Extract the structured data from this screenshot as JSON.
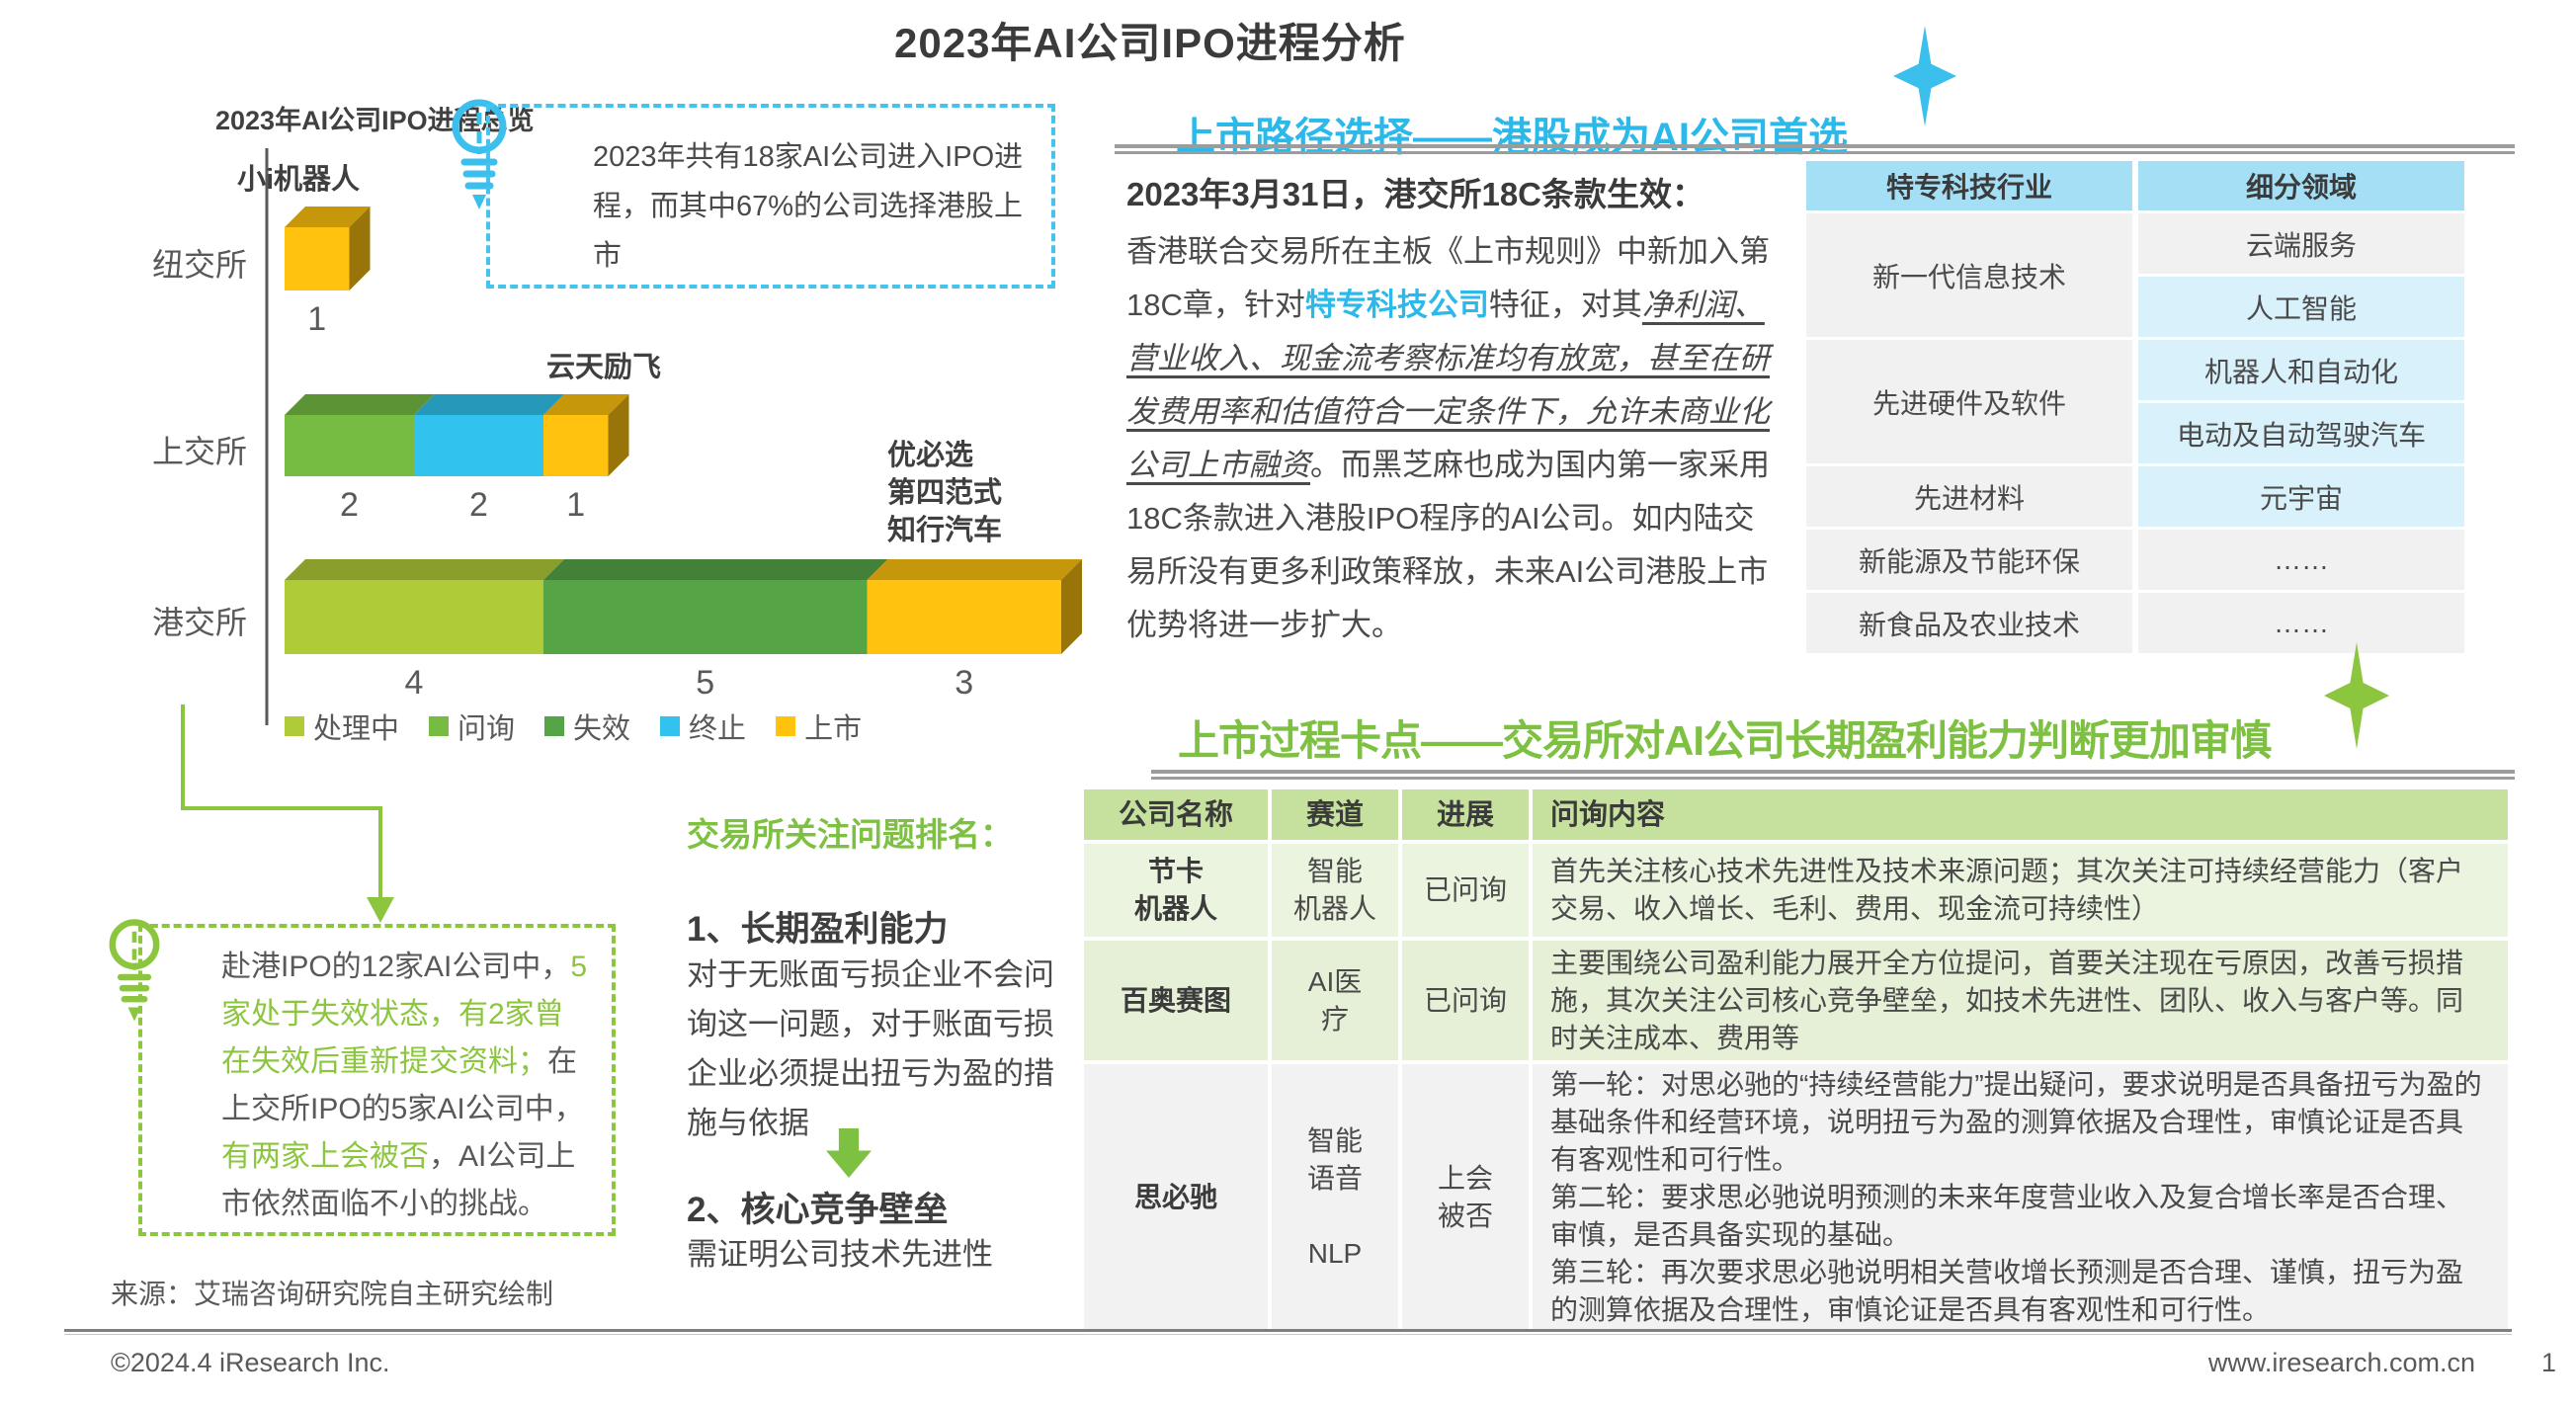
{
  "header": {
    "title": "2023年AI公司IPO进程分析"
  },
  "left_panel": {
    "callout": "2023年共有18家AI公司进入IPO进程，而其中67%的公司选择港股上市",
    "insight_segments": [
      {
        "style": "normal",
        "text": "赴港IPO的12家AI公司中，"
      },
      {
        "style": "green",
        "text": "5家处于失效状态，有2家曾在失效后重新提交资料；"
      },
      {
        "style": "normal",
        "text": "在上交所IPO的5家AI公司中，"
      },
      {
        "style": "green",
        "text": "有两家上会被否"
      },
      {
        "style": "normal",
        "text": "，AI公司上市依然面临不小的挑战。"
      }
    ],
    "source_note": "来源：艾瑞咨询研究院自主研究绘制"
  },
  "chart_data": {
    "type": "bar",
    "orientation": "horizontal",
    "stacked": true,
    "title": "2023年AI公司IPO进程总览",
    "categories": [
      "纽交所",
      "上交所",
      "港交所"
    ],
    "series": [
      {
        "name": "处理中",
        "color": "#AFCB37",
        "values": [
          0,
          0,
          4
        ]
      },
      {
        "name": "问询",
        "color": "#76BC43",
        "values": [
          0,
          2,
          0
        ]
      },
      {
        "name": "失效",
        "color": "#55A546",
        "values": [
          0,
          0,
          5
        ]
      },
      {
        "name": "终止",
        "color": "#31C3EE",
        "values": [
          0,
          2,
          0
        ]
      },
      {
        "name": "上市",
        "color": "#FFC20E",
        "values": [
          1,
          1,
          3
        ]
      }
    ],
    "annotations": {
      "纽交所": [
        "小i机器人"
      ],
      "上交所": [
        "云天励飞"
      ],
      "港交所": [
        "优必选",
        "第四范式",
        "知行汽车"
      ]
    },
    "legend_position": "bottom"
  },
  "ranking": {
    "title": "交易所关注问题排名：",
    "items": [
      {
        "heading": "1、长期盈利能力",
        "body": "对于无账面亏损企业不会问询这一问题，对于账面亏损企业必须提出扭亏为盈的措施与依据"
      },
      {
        "heading": "2、核心竞争壁垒",
        "body": "需证明公司技术先进性"
      }
    ]
  },
  "path_section": {
    "title": "上市路径选择——港股成为AI公司首选",
    "heading": "2023年3月31日，港交所18C条款生效：",
    "paragraph_segments": [
      {
        "style": "normal",
        "text": "香港联合交易所在主板《上市规则》中新加入第18C章，针对"
      },
      {
        "style": "cyan-bold",
        "text": "特专科技公司"
      },
      {
        "style": "normal",
        "text": "特征，对其"
      },
      {
        "style": "italic-underline",
        "text": "净利润、营业收入、现金流考察标准均有放宽，甚至在研发费用率和估值符合一定条件下，允许未商业化公司上市融资"
      },
      {
        "style": "normal",
        "text": "。而黑芝麻也成为国内第一家采用18C条款进入港股IPO程序的AI公司。如内陆交易所没有更多利政策释放，未来AI公司港股上市优势将进一步扩大。"
      }
    ],
    "tech_table": {
      "headers": [
        "特专科技行业",
        "细分领域"
      ],
      "groups": [
        {
          "industry": "新一代信息技术",
          "fields": [
            {
              "label": "云端服务",
              "highlight": false
            },
            {
              "label": "人工智能",
              "highlight": true
            }
          ]
        },
        {
          "industry": "先进硬件及软件",
          "fields": [
            {
              "label": "机器人和自动化",
              "highlight": true
            },
            {
              "label": "电动及自动驾驶汽车",
              "highlight": true
            }
          ]
        },
        {
          "industry": "先进材料",
          "fields": [
            {
              "label": "元宇宙",
              "highlight": true
            }
          ]
        },
        {
          "industry": "新能源及节能环保",
          "fields": [
            {
              "label": "……",
              "highlight": false
            }
          ]
        },
        {
          "industry": "新食品及农业技术",
          "fields": [
            {
              "label": "……",
              "highlight": false
            }
          ]
        }
      ]
    }
  },
  "block_section": {
    "title": "上市过程卡点——交易所对AI公司长期盈利能力判断更加审慎",
    "table": {
      "headers": [
        "公司名称",
        "赛道",
        "进展",
        "问询内容"
      ],
      "rows": [
        {
          "company": "节卡\n机器人",
          "track": "智能\n机器人",
          "status": "已问询",
          "content": "首先关注核心技术先进性及技术来源问题；其次关注可持续经营能力（客户交易、收入增长、毛利、费用、现金流可持续性）",
          "tint": "a"
        },
        {
          "company": "百奥赛图",
          "track": "AI医\n疗",
          "status": "已问询",
          "content": "主要围绕公司盈利能力展开全方位提问，首要关注现在亏原因，改善亏损措施，其次关注公司核心竞争壁垒，如技术先进性、团队、收入与客户等。同时关注成本、费用等",
          "tint": "b"
        },
        {
          "company": "思必驰",
          "track": "智能\n语音\n\nNLP",
          "status": "上会\n被否",
          "content": "第一轮：对思必驰的“持续经营能力”提出疑问，要求说明是否具备扭亏为盈的基础条件和经营环境，说明扭亏为盈的测算依据及合理性，审慎论证是否具有客观性和可行性。\n第二轮：要求思必驰说明预测的未来年度营业收入及复合增长率是否合理、审慎，是否具备实现的基础。\n第三轮：再次要求思必驰说明相关营收增长预测是否合理、谨慎，扭亏为盈的测算依据及合理性，审慎论证是否具有客观性和可行性。",
          "tint": "c"
        }
      ]
    }
  },
  "footer": {
    "copyright": "©2024.4 iResearch Inc.",
    "website": "www.iresearch.com.cn",
    "page_number": "1"
  }
}
